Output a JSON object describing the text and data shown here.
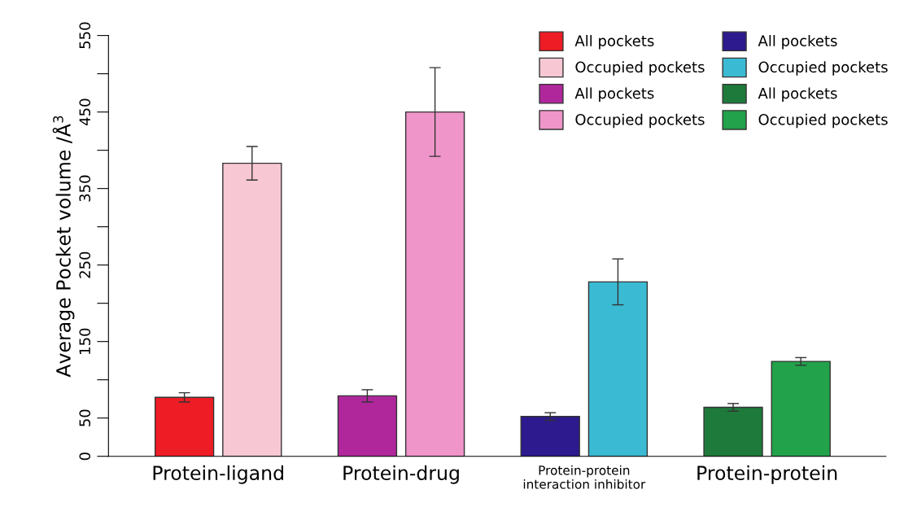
{
  "chart_data": {
    "type": "bar",
    "ylabel": "Average Pocket volume /Å$^{3}$",
    "categories": [
      "Protein-ligand",
      "Protein-drug",
      "Protein-protein\ninteraction inhibitor",
      "Protein-protein"
    ],
    "series": [
      {
        "name": "All pockets",
        "color": "#ee1c25",
        "values": [
          77,
          null,
          null,
          null
        ],
        "errors": [
          6,
          null,
          null,
          null
        ]
      },
      {
        "name": "Occupied pockets",
        "color": "#f7c8d3",
        "values": [
          383,
          null,
          null,
          null
        ],
        "errors": [
          22,
          null,
          null,
          null
        ]
      },
      {
        "name": "All pockets",
        "color": "#b0279c",
        "values": [
          null,
          79,
          null,
          null
        ],
        "errors": [
          null,
          8,
          null,
          null
        ]
      },
      {
        "name": "Occupied pockets",
        "color": "#ef95c9",
        "values": [
          null,
          450,
          null,
          null
        ],
        "errors": [
          null,
          58,
          null,
          null
        ]
      },
      {
        "name": "All pockets",
        "color": "#2c1a8e",
        "values": [
          null,
          null,
          52,
          null
        ],
        "errors": [
          null,
          null,
          5,
          null
        ]
      },
      {
        "name": "Occupied pockets",
        "color": "#3bbad3",
        "values": [
          null,
          null,
          228,
          null
        ],
        "errors": [
          null,
          null,
          30,
          null
        ]
      },
      {
        "name": "All pockets",
        "color": "#1e7a3a",
        "values": [
          null,
          null,
          null,
          64
        ],
        "errors": [
          null,
          null,
          null,
          5
        ]
      },
      {
        "name": "Occupied pockets",
        "color": "#22a24a",
        "values": [
          null,
          null,
          null,
          124
        ],
        "errors": [
          null,
          null,
          null,
          5
        ]
      }
    ],
    "ylim": [
      0,
      550
    ],
    "yticks": [
      0,
      50,
      {
        "value": 100,
        "label": null
      },
      150,
      {
        "value": 200,
        "label": null
      },
      250,
      {
        "value": 300,
        "label": null
      },
      350,
      {
        "value": 400,
        "label": null
      },
      450,
      {
        "value": 500,
        "label": null
      },
      550
    ],
    "legend": "top right",
    "grid": false
  }
}
